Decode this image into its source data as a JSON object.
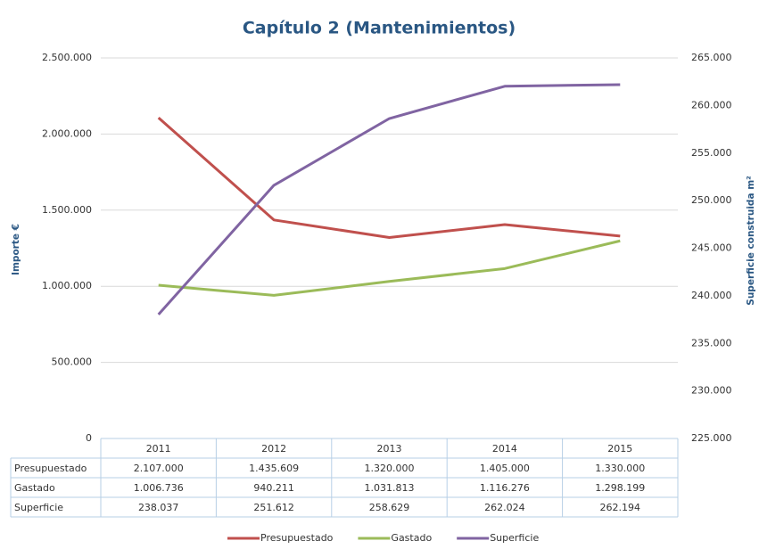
{
  "chart_data": {
    "type": "line",
    "title": "Capítulo 2 (Mantenimientos)",
    "y_label": "Importe €",
    "y2_label": "Superficie construida m²",
    "categories": [
      "2011",
      "2012",
      "2013",
      "2014",
      "2015"
    ],
    "series": [
      {
        "name": "Presupuestado",
        "color": "#c0504d",
        "values": [
          2107000,
          1435609,
          1320000,
          1405000,
          1330000
        ],
        "value_labels": [
          "2.107.000",
          "1.435.609",
          "1.320.000",
          "1.405.000",
          "1.330.000"
        ]
      },
      {
        "name": "Gastado",
        "color": "#9bbb59",
        "values": [
          1006736,
          940211,
          1031813,
          1116276,
          1298199
        ],
        "value_labels": [
          "1.006.736",
          "940.211",
          "1.031.813",
          "1.116.276",
          "1.298.199"
        ]
      },
      {
        "name": "Superficie",
        "color": "#8064a2",
        "axis": "y2",
        "values": [
          238037,
          251612,
          258629,
          262024,
          262194
        ],
        "value_labels": [
          "238.037",
          "251.612",
          "258.629",
          "262.024",
          "262.194"
        ]
      }
    ],
    "ylim": [
      0,
      2500000
    ],
    "yticks": [
      0,
      {
        "value": 500000,
        "label": "500.000"
      },
      {
        "value": 1000000,
        "label": "1.000.000"
      },
      {
        "value": 1500000,
        "label": "1.500.000"
      },
      {
        "value": 2000000,
        "label": "2.000.000"
      },
      {
        "value": 2500000,
        "label": "2.500.000"
      }
    ],
    "y2lim": [
      225000,
      265000
    ],
    "y2ticks": [
      {
        "value": 225000,
        "label": "225.000"
      },
      {
        "value": 230000,
        "label": "230.000"
      },
      {
        "value": 235000,
        "label": "235.000"
      },
      {
        "value": 240000,
        "label": "240.000"
      },
      {
        "value": 245000,
        "label": "245.000"
      },
      {
        "value": 250000,
        "label": "250.000"
      },
      {
        "value": 255000,
        "label": "255.000"
      },
      {
        "value": 260000,
        "label": "260.000"
      },
      {
        "value": 265000,
        "label": "265.000"
      }
    ],
    "grid": true,
    "legend": "bottom"
  }
}
